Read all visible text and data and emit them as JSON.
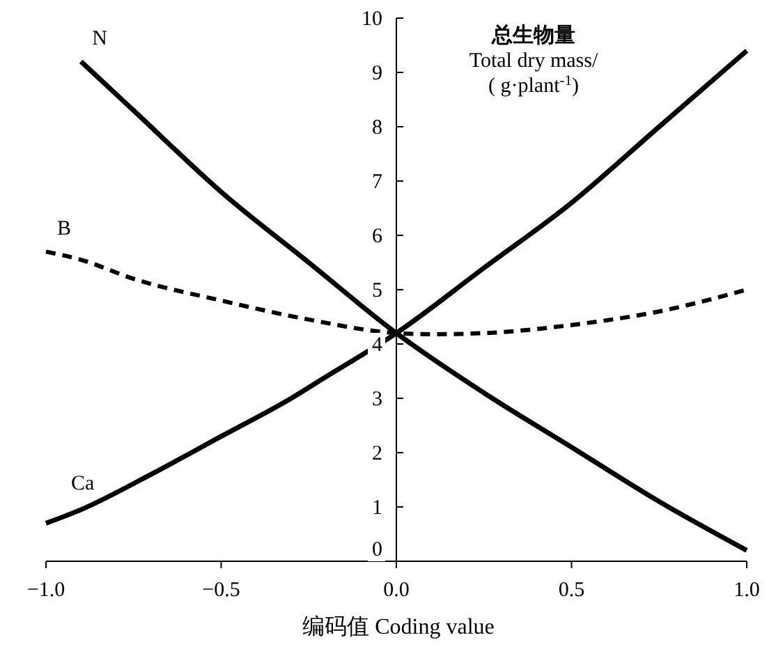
{
  "chart_data": {
    "type": "line",
    "xlabel": "编码值 Coding value",
    "ylabel": "总生物量\nTotal dry mass/\n( g·plant$^{-1}$)",
    "xlim": [
      -1,
      1
    ],
    "xticks": [
      {
        "value": -1,
        "label": "−1.0"
      },
      {
        "value": -0.5,
        "label": "−0.5"
      },
      {
        "value": 0,
        "label": "0.0"
      },
      {
        "value": 0.5,
        "label": "0.5"
      },
      {
        "value": 1,
        "label": "1.0"
      }
    ],
    "ylim": [
      0,
      10
    ],
    "yticks": [
      0,
      1,
      2,
      3,
      4,
      5,
      6,
      7,
      8,
      9,
      10
    ],
    "marker": "none",
    "series": [
      {
        "name": "N",
        "color": "#000000",
        "line_style": "solid",
        "x": [
          -0.9,
          -0.75,
          -0.5,
          -0.25,
          0,
          0.25,
          0.5,
          0.75,
          1.0
        ],
        "values": [
          9.2,
          8.3,
          6.8,
          5.5,
          4.2,
          3.1,
          2.1,
          1.1,
          0.2
        ]
      },
      {
        "name": "B",
        "color": "#000000",
        "line_style": "dashed",
        "x": [
          -1,
          -0.9,
          -0.75,
          -0.5,
          -0.25,
          0,
          0.1,
          0.25,
          0.5,
          0.75,
          1.0
        ],
        "values": [
          5.7,
          5.55,
          5.2,
          4.8,
          4.45,
          4.2,
          4.18,
          4.2,
          4.35,
          4.6,
          5.0
        ]
      },
      {
        "name": "Ca",
        "color": "#000000",
        "line_style": "solid",
        "x": [
          -1,
          -0.9,
          -0.7,
          -0.5,
          -0.3,
          -0.2,
          0,
          0.25,
          0.5,
          0.75,
          1.0
        ],
        "values": [
          0.7,
          0.95,
          1.6,
          2.3,
          3.0,
          3.4,
          4.2,
          5.4,
          6.6,
          8.0,
          9.4
        ]
      }
    ]
  }
}
